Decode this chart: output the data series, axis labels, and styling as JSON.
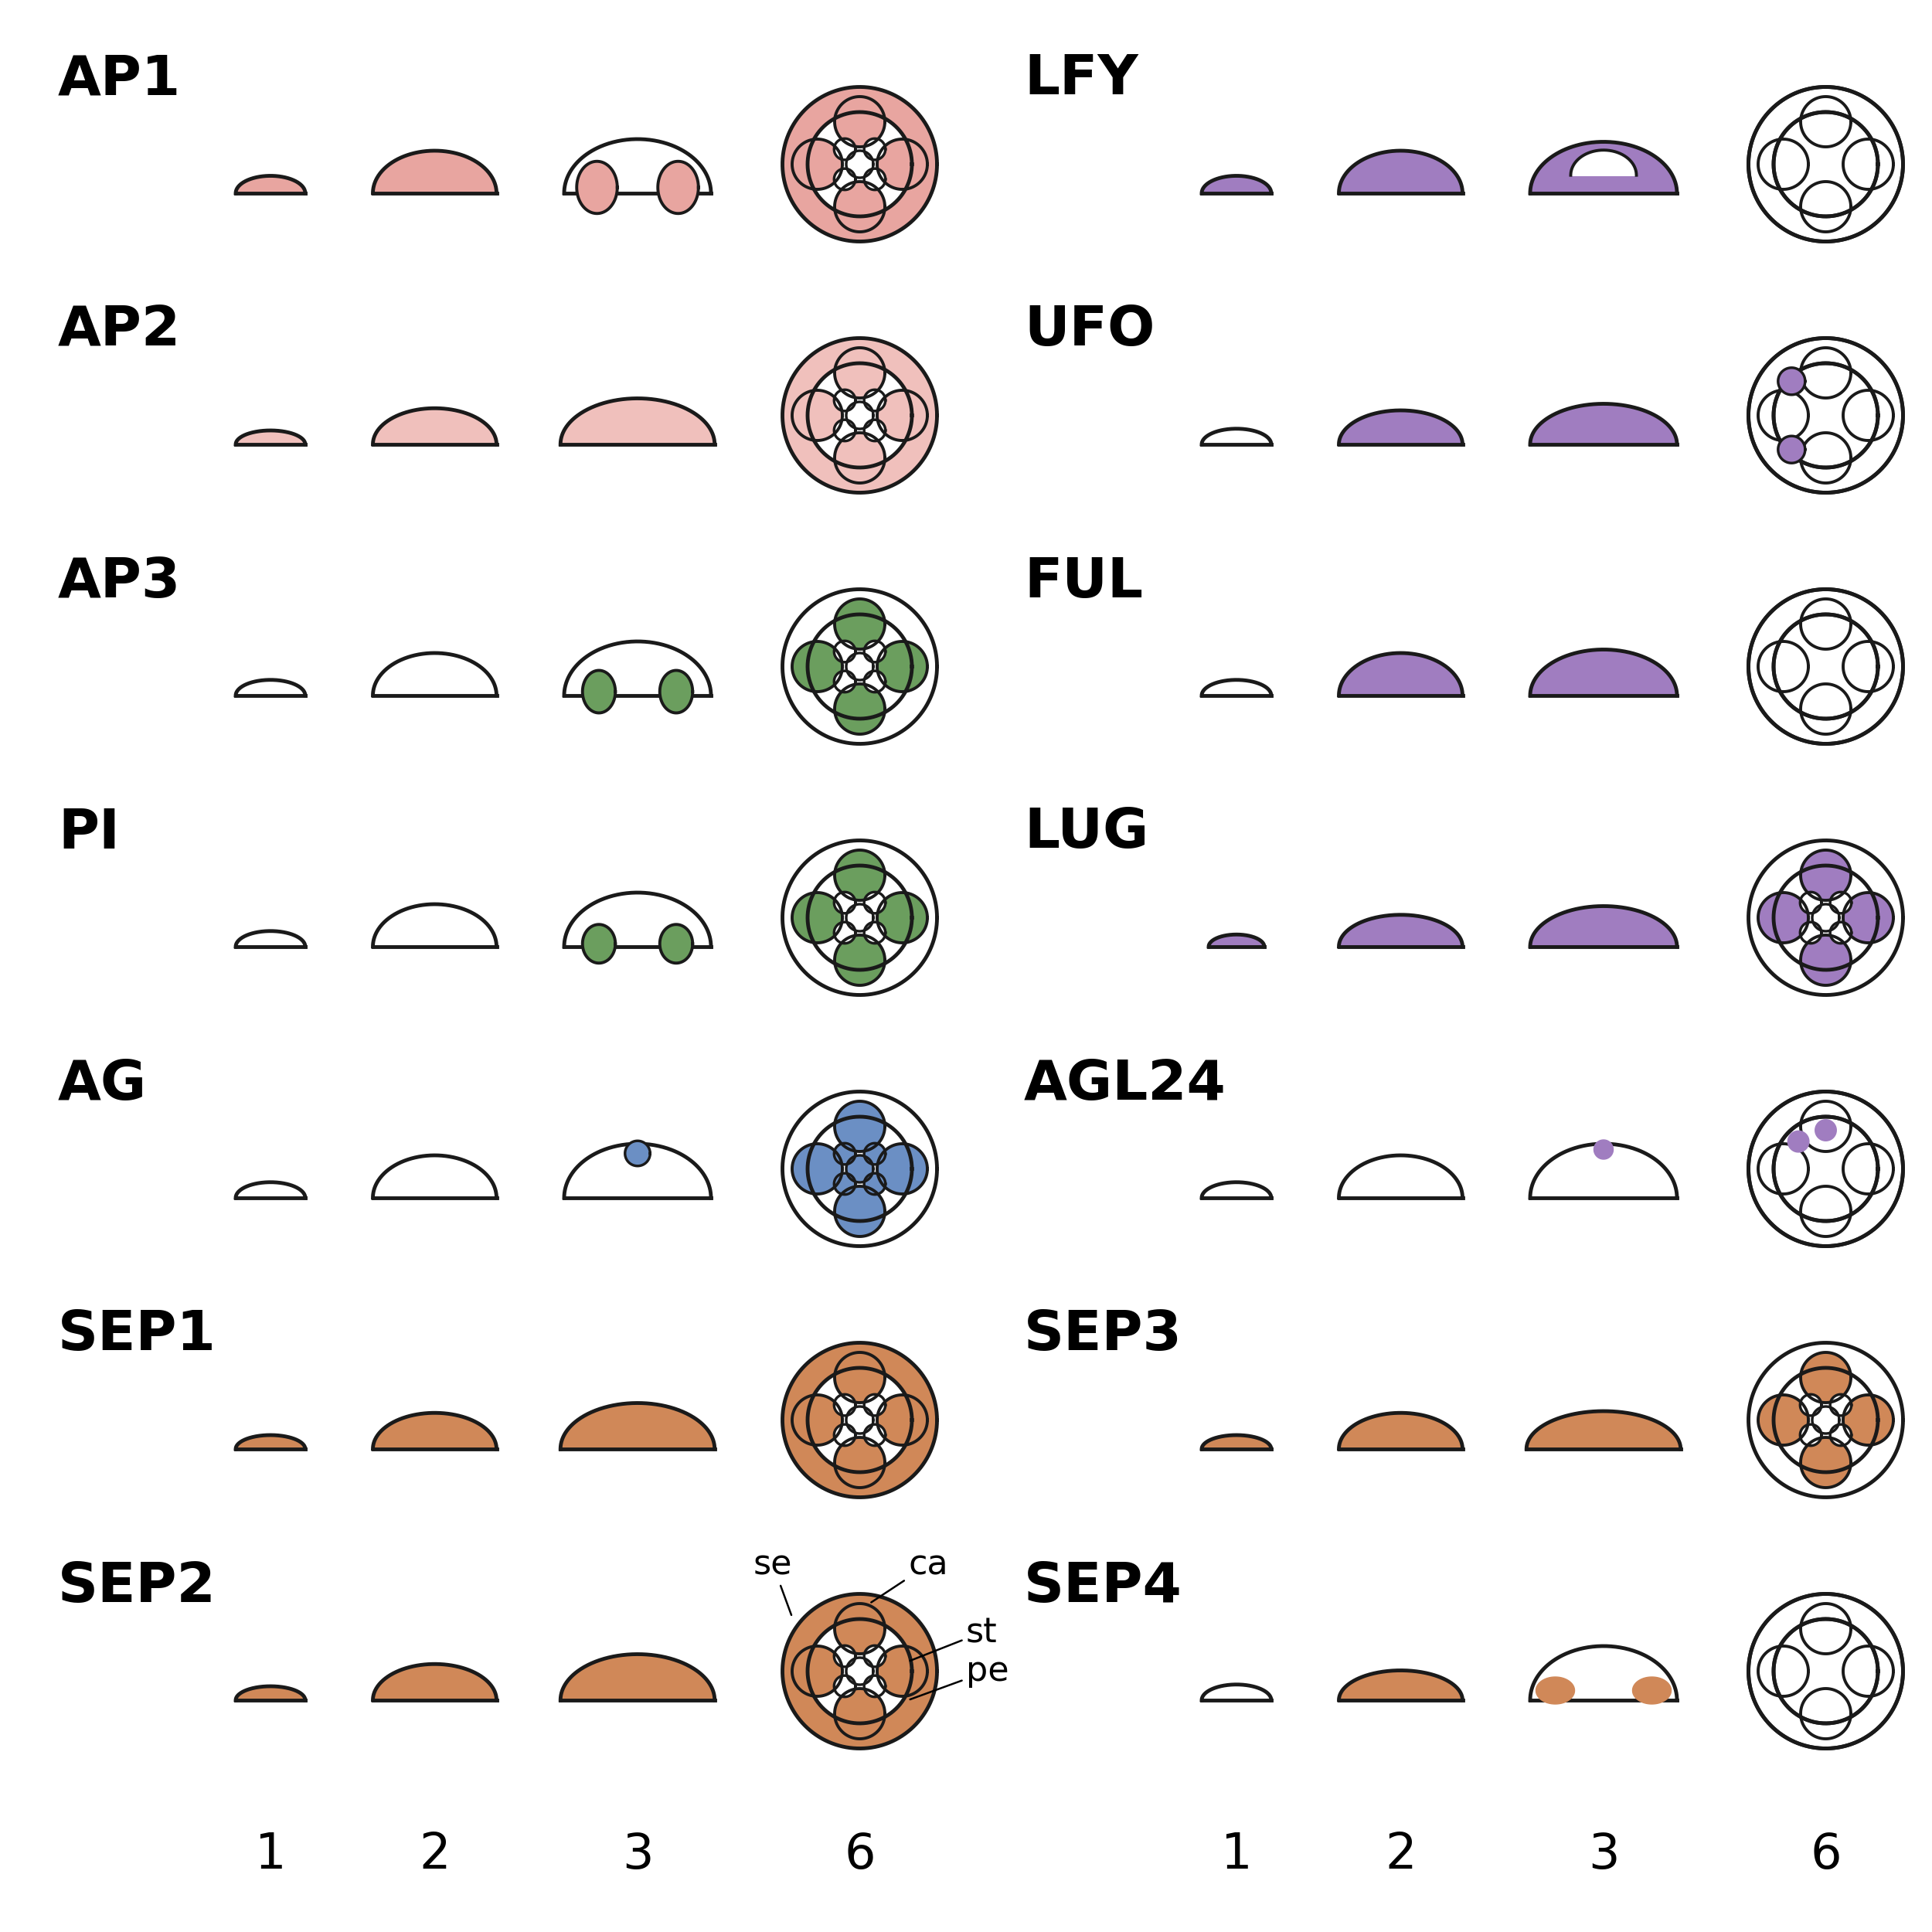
{
  "background": "#ffffff",
  "line_color": "#1a1a1a",
  "line_width": 3.5,
  "pink": "#E8A5A0",
  "pink_light": "#F0C0BC",
  "green": "#6B9E5E",
  "blue": "#6B8FC4",
  "purple": "#A07DC0",
  "orange": "#D08858",
  "white": "#ffffff",
  "genes_left": [
    "AP1",
    "AP2",
    "AP3",
    "PI",
    "AG",
    "SEP1",
    "SEP2"
  ],
  "genes_right": [
    "LFY",
    "UFO",
    "FUL",
    "LUG",
    "AGL24",
    "SEP3",
    "SEP4"
  ],
  "font_size_gene": 52,
  "font_size_stage": 46,
  "font_size_annot": 32
}
